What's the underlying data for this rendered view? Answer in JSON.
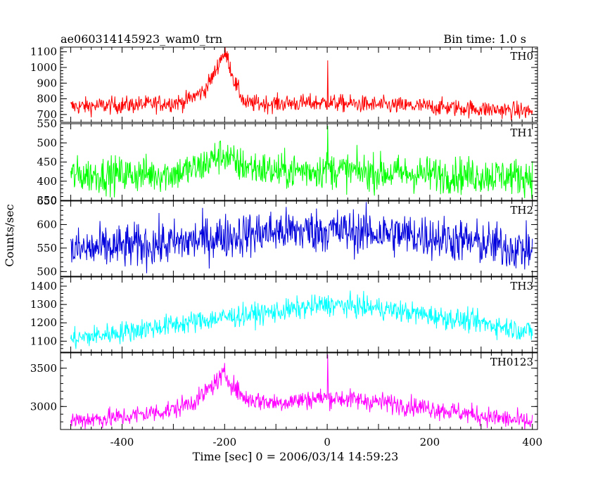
{
  "header": {
    "title": "ae060314145923_wam0_trn",
    "bin_time": "Bin time: 1.0 s"
  },
  "chart_data": {
    "type": "line",
    "xlabel": "Time [sec] 0 = 2006/03/14 14:59:23",
    "ylabel": "Counts/sec",
    "xlim": [
      -520,
      410
    ],
    "xticks": [
      -400,
      -200,
      0,
      200,
      400
    ],
    "panels": [
      {
        "name": "TH0",
        "color": "#ff0000",
        "ylim": [
          650,
          1130
        ],
        "yticks": [
          700,
          800,
          900,
          1000,
          1100
        ],
        "series_profile": {
          "x": [
            -500,
            -350,
            -280,
            -240,
            -220,
            -205,
            -195,
            -180,
            -160,
            -100,
            0,
            100,
            200,
            300,
            400
          ],
          "y": [
            750,
            765,
            780,
            850,
            960,
            1080,
            1070,
            900,
            770,
            770,
            775,
            760,
            750,
            735,
            720
          ]
        },
        "noise": 28,
        "spike": {
          "x": 1,
          "y": 1045
        }
      },
      {
        "name": "TH1",
        "color": "#00ff00",
        "ylim": [
          350,
          550
        ],
        "yticks": [
          350,
          400,
          450,
          500,
          550
        ],
        "series_profile": {
          "x": [
            -500,
            -300,
            -250,
            -220,
            -200,
            -180,
            -100,
            0,
            100,
            200,
            300,
            400
          ],
          "y": [
            415,
            420,
            435,
            460,
            470,
            445,
            425,
            430,
            422,
            418,
            415,
            412
          ]
        },
        "noise": 24,
        "spike": {
          "x": 1,
          "y": 545
        }
      },
      {
        "name": "TH2",
        "color": "#0000dd",
        "ylim": [
          490,
          650
        ],
        "yticks": [
          500,
          550,
          600,
          650
        ],
        "series_profile": {
          "x": [
            -500,
            -300,
            -200,
            -100,
            0,
            100,
            200,
            300,
            400
          ],
          "y": [
            545,
            560,
            575,
            585,
            588,
            582,
            575,
            560,
            545
          ]
        },
        "noise": 24,
        "spike": null
      },
      {
        "name": "TH3",
        "color": "#00ffff",
        "ylim": [
          1040,
          1450
        ],
        "yticks": [
          1100,
          1200,
          1300,
          1400
        ],
        "series_profile": {
          "x": [
            -500,
            -400,
            -300,
            -200,
            -100,
            0,
            100,
            200,
            300,
            400
          ],
          "y": [
            1110,
            1150,
            1190,
            1230,
            1260,
            1300,
            1280,
            1240,
            1200,
            1150
          ]
        },
        "noise": 30,
        "spike": null
      },
      {
        "name": "TH0123",
        "color": "#ff00ff",
        "ylim": [
          2700,
          3700
        ],
        "yticks": [
          3000,
          3500
        ],
        "series_profile": {
          "x": [
            -500,
            -400,
            -300,
            -250,
            -220,
            -200,
            -180,
            -160,
            -100,
            0,
            100,
            200,
            300,
            400
          ],
          "y": [
            2820,
            2860,
            2960,
            3100,
            3300,
            3420,
            3250,
            3100,
            3050,
            3120,
            3060,
            2980,
            2880,
            2790
          ]
        },
        "noise": 65,
        "spike": {
          "x": 1,
          "y": 3680
        }
      }
    ]
  }
}
